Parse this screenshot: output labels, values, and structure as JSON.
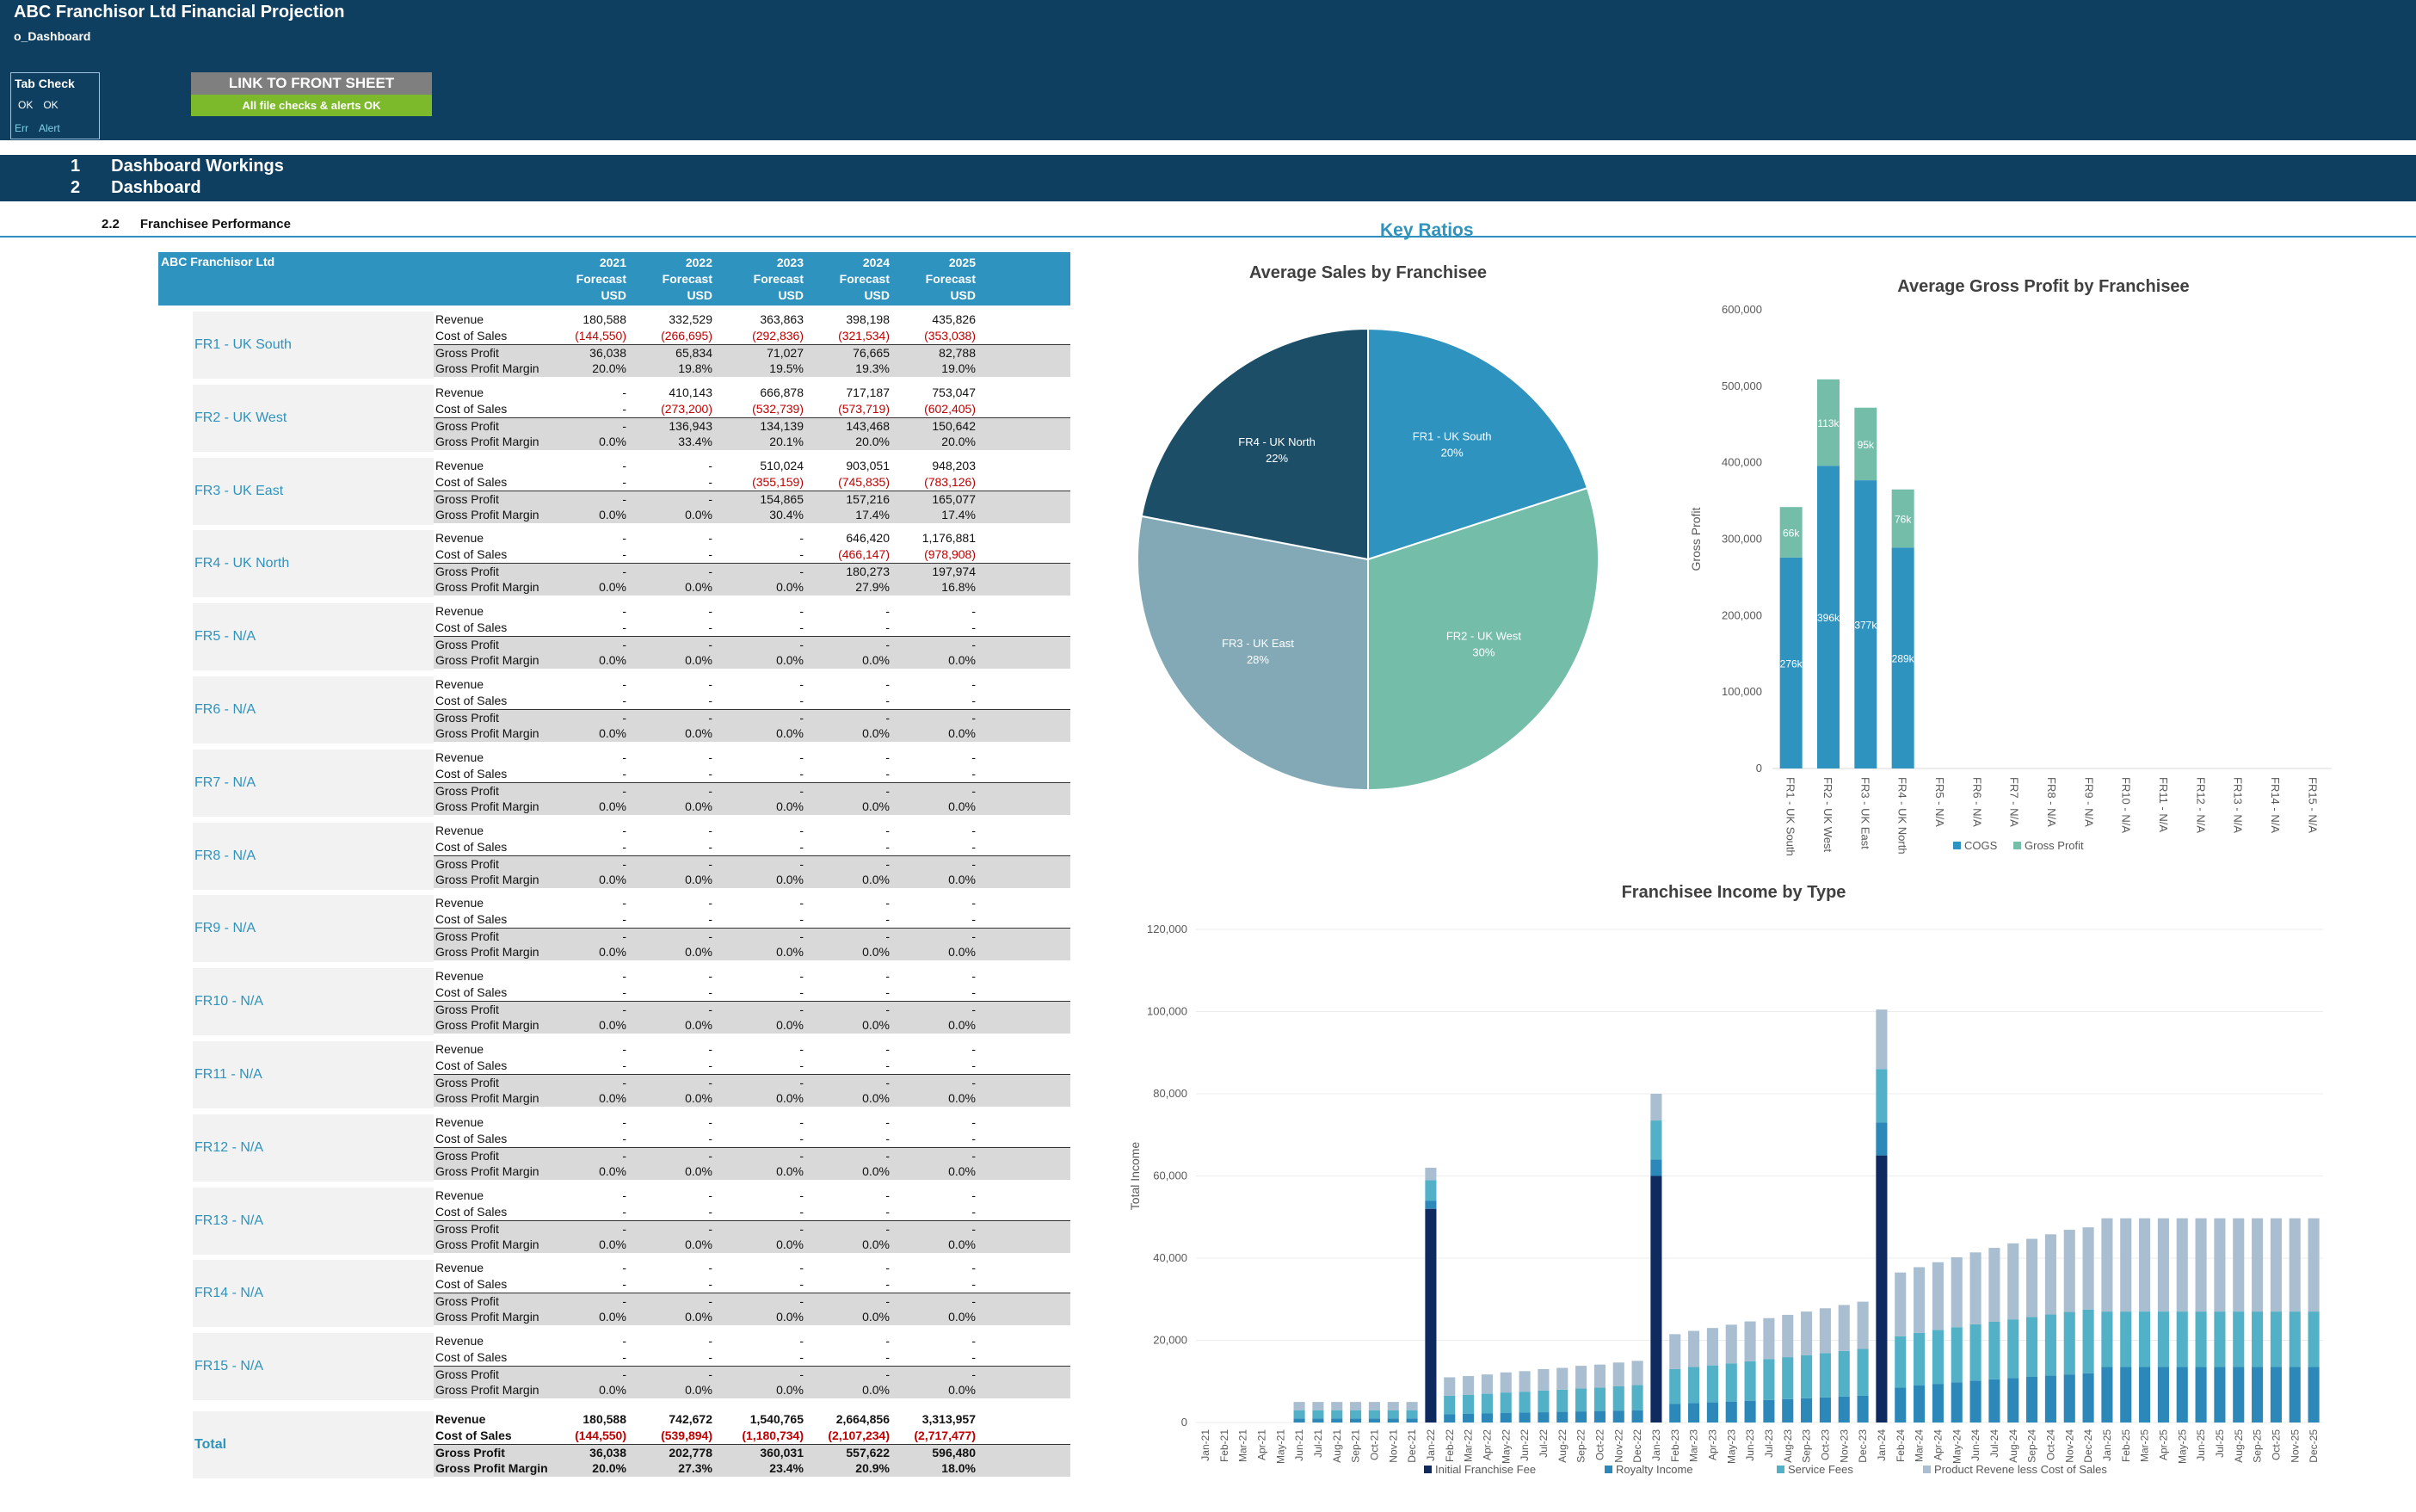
{
  "header": {
    "title": "ABC Franchisor Ltd Financial Projection",
    "sheet": "o_Dashboard",
    "tab_check": {
      "label": "Tab Check",
      "ok1": "OK",
      "ok2": "OK",
      "err": "Err",
      "alert": "Alert"
    },
    "link_button": "LINK TO FRONT SHEET",
    "status": "All file checks & alerts OK"
  },
  "sections": [
    {
      "num": "1",
      "label": "Dashboard Workings"
    },
    {
      "num": "2",
      "label": "Dashboard"
    }
  ],
  "subsection": {
    "num": "2.2",
    "label": "Franchisee Performance"
  },
  "key_ratios": "Key Ratios",
  "table": {
    "company": "ABC Franchisor Ltd",
    "years": [
      "2021",
      "2022",
      "2023",
      "2024",
      "2025"
    ],
    "row2": "Forecast",
    "row3": "USD",
    "line_labels": [
      "Revenue",
      "Cost of Sales",
      "Gross Profit",
      "Gross Profit Margin"
    ],
    "franchisees": [
      {
        "name": "FR1 - UK South",
        "rev": [
          "180,588",
          "332,529",
          "363,863",
          "398,198",
          "435,826"
        ],
        "cos": [
          "(144,550)",
          "(266,695)",
          "(292,836)",
          "(321,534)",
          "(353,038)"
        ],
        "gp": [
          "36,038",
          "65,834",
          "71,027",
          "76,665",
          "82,788"
        ],
        "gpm": [
          "20.0%",
          "19.8%",
          "19.5%",
          "19.3%",
          "19.0%"
        ]
      },
      {
        "name": "FR2 - UK West",
        "rev": [
          "-",
          "410,143",
          "666,878",
          "717,187",
          "753,047"
        ],
        "cos": [
          "-",
          "(273,200)",
          "(532,739)",
          "(573,719)",
          "(602,405)"
        ],
        "gp": [
          "-",
          "136,943",
          "134,139",
          "143,468",
          "150,642"
        ],
        "gpm": [
          "0.0%",
          "33.4%",
          "20.1%",
          "20.0%",
          "20.0%"
        ]
      },
      {
        "name": "FR3 - UK East",
        "rev": [
          "-",
          "-",
          "510,024",
          "903,051",
          "948,203"
        ],
        "cos": [
          "-",
          "-",
          "(355,159)",
          "(745,835)",
          "(783,126)"
        ],
        "gp": [
          "-",
          "-",
          "154,865",
          "157,216",
          "165,077"
        ],
        "gpm": [
          "0.0%",
          "0.0%",
          "30.4%",
          "17.4%",
          "17.4%"
        ]
      },
      {
        "name": "FR4 - UK North",
        "rev": [
          "-",
          "-",
          "-",
          "646,420",
          "1,176,881"
        ],
        "cos": [
          "-",
          "-",
          "-",
          "(466,147)",
          "(978,908)"
        ],
        "gp": [
          "-",
          "-",
          "-",
          "180,273",
          "197,974"
        ],
        "gpm": [
          "0.0%",
          "0.0%",
          "0.0%",
          "27.9%",
          "16.8%"
        ]
      },
      {
        "name": "FR5 - N/A",
        "rev": [
          "-",
          "-",
          "-",
          "-",
          "-"
        ],
        "cos": [
          "-",
          "-",
          "-",
          "-",
          "-"
        ],
        "gp": [
          "-",
          "-",
          "-",
          "-",
          "-"
        ],
        "gpm": [
          "0.0%",
          "0.0%",
          "0.0%",
          "0.0%",
          "0.0%"
        ]
      },
      {
        "name": "FR6 - N/A",
        "rev": [
          "-",
          "-",
          "-",
          "-",
          "-"
        ],
        "cos": [
          "-",
          "-",
          "-",
          "-",
          "-"
        ],
        "gp": [
          "-",
          "-",
          "-",
          "-",
          "-"
        ],
        "gpm": [
          "0.0%",
          "0.0%",
          "0.0%",
          "0.0%",
          "0.0%"
        ]
      },
      {
        "name": "FR7 - N/A",
        "rev": [
          "-",
          "-",
          "-",
          "-",
          "-"
        ],
        "cos": [
          "-",
          "-",
          "-",
          "-",
          "-"
        ],
        "gp": [
          "-",
          "-",
          "-",
          "-",
          "-"
        ],
        "gpm": [
          "0.0%",
          "0.0%",
          "0.0%",
          "0.0%",
          "0.0%"
        ]
      },
      {
        "name": "FR8 - N/A",
        "rev": [
          "-",
          "-",
          "-",
          "-",
          "-"
        ],
        "cos": [
          "-",
          "-",
          "-",
          "-",
          "-"
        ],
        "gp": [
          "-",
          "-",
          "-",
          "-",
          "-"
        ],
        "gpm": [
          "0.0%",
          "0.0%",
          "0.0%",
          "0.0%",
          "0.0%"
        ]
      },
      {
        "name": "FR9 - N/A",
        "rev": [
          "-",
          "-",
          "-",
          "-",
          "-"
        ],
        "cos": [
          "-",
          "-",
          "-",
          "-",
          "-"
        ],
        "gp": [
          "-",
          "-",
          "-",
          "-",
          "-"
        ],
        "gpm": [
          "0.0%",
          "0.0%",
          "0.0%",
          "0.0%",
          "0.0%"
        ]
      },
      {
        "name": "FR10 - N/A",
        "rev": [
          "-",
          "-",
          "-",
          "-",
          "-"
        ],
        "cos": [
          "-",
          "-",
          "-",
          "-",
          "-"
        ],
        "gp": [
          "-",
          "-",
          "-",
          "-",
          "-"
        ],
        "gpm": [
          "0.0%",
          "0.0%",
          "0.0%",
          "0.0%",
          "0.0%"
        ]
      },
      {
        "name": "FR11 - N/A",
        "rev": [
          "-",
          "-",
          "-",
          "-",
          "-"
        ],
        "cos": [
          "-",
          "-",
          "-",
          "-",
          "-"
        ],
        "gp": [
          "-",
          "-",
          "-",
          "-",
          "-"
        ],
        "gpm": [
          "0.0%",
          "0.0%",
          "0.0%",
          "0.0%",
          "0.0%"
        ]
      },
      {
        "name": "FR12 - N/A",
        "rev": [
          "-",
          "-",
          "-",
          "-",
          "-"
        ],
        "cos": [
          "-",
          "-",
          "-",
          "-",
          "-"
        ],
        "gp": [
          "-",
          "-",
          "-",
          "-",
          "-"
        ],
        "gpm": [
          "0.0%",
          "0.0%",
          "0.0%",
          "0.0%",
          "0.0%"
        ]
      },
      {
        "name": "FR13 - N/A",
        "rev": [
          "-",
          "-",
          "-",
          "-",
          "-"
        ],
        "cos": [
          "-",
          "-",
          "-",
          "-",
          "-"
        ],
        "gp": [
          "-",
          "-",
          "-",
          "-",
          "-"
        ],
        "gpm": [
          "0.0%",
          "0.0%",
          "0.0%",
          "0.0%",
          "0.0%"
        ]
      },
      {
        "name": "FR14 - N/A",
        "rev": [
          "-",
          "-",
          "-",
          "-",
          "-"
        ],
        "cos": [
          "-",
          "-",
          "-",
          "-",
          "-"
        ],
        "gp": [
          "-",
          "-",
          "-",
          "-",
          "-"
        ],
        "gpm": [
          "0.0%",
          "0.0%",
          "0.0%",
          "0.0%",
          "0.0%"
        ]
      },
      {
        "name": "FR15 - N/A",
        "rev": [
          "-",
          "-",
          "-",
          "-",
          "-"
        ],
        "cos": [
          "-",
          "-",
          "-",
          "-",
          "-"
        ],
        "gp": [
          "-",
          "-",
          "-",
          "-",
          "-"
        ],
        "gpm": [
          "0.0%",
          "0.0%",
          "0.0%",
          "0.0%",
          "0.0%"
        ]
      }
    ],
    "total": {
      "name": "Total",
      "rev": [
        "180,588",
        "742,672",
        "1,540,765",
        "2,664,856",
        "3,313,957"
      ],
      "cos": [
        "(144,550)",
        "(539,894)",
        "(1,180,734)",
        "(2,107,234)",
        "(2,717,477)"
      ],
      "gp": [
        "36,038",
        "202,778",
        "360,031",
        "557,622",
        "596,480"
      ],
      "gpm": [
        "20.0%",
        "27.3%",
        "23.4%",
        "20.9%",
        "18.0%"
      ]
    }
  },
  "chart_data": [
    {
      "type": "pie",
      "title": "Average Sales by Franchisee",
      "labels": [
        "FR1 - UK South",
        "FR2 - UK West",
        "FR3 - UK East",
        "FR4 - UK North"
      ],
      "values": [
        20,
        30,
        28,
        22
      ],
      "value_labels": [
        "20%",
        "30%",
        "28%",
        "22%"
      ],
      "colors": [
        "#2f93c0",
        "#73bda9",
        "#83a9b6",
        "#1d4e68"
      ]
    },
    {
      "type": "bar",
      "stacked": true,
      "title": "Average Gross Profit by Franchisee",
      "ylabel": "Gross Profit",
      "ylim": [
        0,
        600000
      ],
      "yticks": [
        "0",
        "100,000",
        "200,000",
        "300,000",
        "400,000",
        "500,000",
        "600,000"
      ],
      "categories": [
        "FR1 - UK South",
        "FR2 - UK West",
        "FR3 - UK East",
        "FR4 - UK North",
        "FR5 - N/A",
        "FR6 - N/A",
        "FR7 - N/A",
        "FR8 - N/A",
        "FR9 - N/A",
        "FR10 - N/A",
        "FR11 - N/A",
        "FR12 - N/A",
        "FR13 - N/A",
        "FR14 - N/A",
        "FR15 - N/A"
      ],
      "series": [
        {
          "name": "COGS",
          "color": "#2f93c0",
          "values": [
            276000,
            396000,
            377000,
            289000,
            0,
            0,
            0,
            0,
            0,
            0,
            0,
            0,
            0,
            0,
            0
          ],
          "labels": [
            "276k",
            "396k",
            "377k",
            "289k"
          ]
        },
        {
          "name": "Gross Profit",
          "color": "#73bda9",
          "values": [
            66000,
            113000,
            95000,
            76000,
            0,
            0,
            0,
            0,
            0,
            0,
            0,
            0,
            0,
            0,
            0
          ],
          "labels": [
            "66k",
            "113k",
            "95k",
            "76k"
          ]
        }
      ],
      "legend": "bottom"
    },
    {
      "type": "bar",
      "stacked": true,
      "title": "Franchisee Income by Type",
      "ylabel": "Total Income",
      "ylim": [
        0,
        120000
      ],
      "yticks": [
        "0",
        "20,000",
        "40,000",
        "60,000",
        "80,000",
        "100,000",
        "120,000"
      ],
      "categories": [
        "Jan-21",
        "Feb-21",
        "Mar-21",
        "Apr-21",
        "May-21",
        "Jun-21",
        "Jul-21",
        "Aug-21",
        "Sep-21",
        "Oct-21",
        "Nov-21",
        "Dec-21",
        "Jan-22",
        "Feb-22",
        "Mar-22",
        "Apr-22",
        "May-22",
        "Jun-22",
        "Jul-22",
        "Aug-22",
        "Sep-22",
        "Oct-22",
        "Nov-22",
        "Dec-22",
        "Jan-23",
        "Feb-23",
        "Mar-23",
        "Apr-23",
        "May-23",
        "Jun-23",
        "Jul-23",
        "Aug-23",
        "Sep-23",
        "Oct-23",
        "Nov-23",
        "Dec-23",
        "Jan-24",
        "Feb-24",
        "Mar-24",
        "Apr-24",
        "May-24",
        "Jun-24",
        "Jul-24",
        "Aug-24",
        "Sep-24",
        "Oct-24",
        "Nov-24",
        "Dec-24",
        "Jan-25",
        "Feb-25",
        "Mar-25",
        "Apr-25",
        "May-25",
        "Jun-25",
        "Jul-25",
        "Aug-25",
        "Sep-25",
        "Oct-25",
        "Nov-25",
        "Dec-25"
      ],
      "series": [
        {
          "name": "Initial Franchise Fee",
          "color": "#0f2a5e",
          "values": [
            0,
            0,
            0,
            0,
            0,
            0,
            0,
            0,
            0,
            0,
            0,
            0,
            52000,
            0,
            0,
            0,
            0,
            0,
            0,
            0,
            0,
            0,
            0,
            0,
            60000,
            0,
            0,
            0,
            0,
            0,
            0,
            0,
            0,
            0,
            0,
            0,
            65000,
            0,
            0,
            0,
            0,
            0,
            0,
            0,
            0,
            0,
            0,
            0,
            0,
            0,
            0,
            0,
            0,
            0,
            0,
            0,
            0,
            0,
            0,
            0
          ]
        },
        {
          "name": "Royalty Income",
          "color": "#2b88b8",
          "values": [
            0,
            0,
            0,
            0,
            0,
            1000,
            1000,
            1000,
            1000,
            1000,
            1000,
            1000,
            2000,
            2000,
            2100,
            2200,
            2300,
            2400,
            2500,
            2600,
            2700,
            2800,
            2900,
            3000,
            4000,
            4500,
            4700,
            4900,
            5100,
            5300,
            5500,
            5700,
            5900,
            6100,
            6300,
            6500,
            8000,
            8500,
            9000,
            9400,
            9800,
            10200,
            10500,
            10800,
            11100,
            11400,
            11700,
            12000,
            13500,
            13500,
            13500,
            13500,
            13500,
            13500,
            13500,
            13500,
            13500,
            13500,
            13500,
            13500
          ]
        },
        {
          "name": "Service Fees",
          "color": "#52b1c6",
          "values": [
            0,
            0,
            0,
            0,
            0,
            2000,
            2000,
            2000,
            2000,
            2000,
            2000,
            2000,
            5000,
            4500,
            4600,
            4800,
            5000,
            5100,
            5300,
            5400,
            5600,
            5700,
            5900,
            6100,
            9500,
            8500,
            8800,
            9000,
            9300,
            9600,
            9900,
            10200,
            10500,
            10800,
            11100,
            11400,
            13000,
            12500,
            12800,
            13100,
            13400,
            13700,
            14000,
            14300,
            14600,
            14900,
            15200,
            15500,
            13500,
            13500,
            13500,
            13500,
            13500,
            13500,
            13500,
            13500,
            13500,
            13500,
            13500,
            13500
          ]
        },
        {
          "name": "Product Revene less Cost of Sales",
          "color": "#a9bfd1",
          "values": [
            0,
            0,
            0,
            0,
            0,
            2000,
            2000,
            2000,
            2000,
            2000,
            2000,
            2000,
            3000,
            4500,
            4600,
            4700,
            4900,
            5000,
            5200,
            5300,
            5500,
            5600,
            5800,
            5900,
            6500,
            8500,
            8800,
            9100,
            9400,
            9700,
            10000,
            10300,
            10600,
            10900,
            11200,
            11500,
            14500,
            15500,
            16000,
            16500,
            17000,
            17500,
            18000,
            18500,
            19000,
            19500,
            20000,
            20000,
            22700,
            22700,
            22700,
            22700,
            22700,
            22700,
            22700,
            22700,
            22700,
            22700,
            22700,
            22700
          ]
        }
      ],
      "legend": "bottom"
    }
  ]
}
